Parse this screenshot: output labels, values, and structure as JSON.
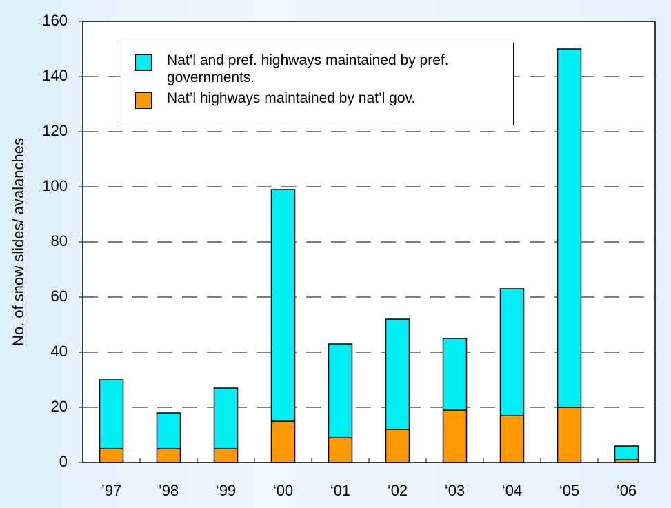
{
  "chart_data": {
    "type": "stacked-bar",
    "ylabel": "No. of snow slides/ avalanches",
    "categories": [
      "’97",
      "’98",
      "‘99",
      "‘00",
      "‘01",
      "‘02",
      "‘03",
      "‘04",
      "‘05",
      "‘06"
    ],
    "series": [
      {
        "name": "Nat’l highways maintained by nat’l gov.",
        "color": "#ff9900",
        "values": [
          5,
          5,
          5,
          15,
          9,
          12,
          19,
          17,
          20,
          1
        ]
      },
      {
        "name": "Nat’l and pref. highways maintained by pref. governments.",
        "color": "#00f0f5",
        "values": [
          25,
          13,
          22,
          84,
          34,
          40,
          26,
          46,
          130,
          5
        ]
      }
    ],
    "ylim": [
      0,
      160
    ],
    "yticks": [
      0,
      20,
      40,
      60,
      80,
      100,
      120,
      140,
      160
    ],
    "grid": true
  }
}
